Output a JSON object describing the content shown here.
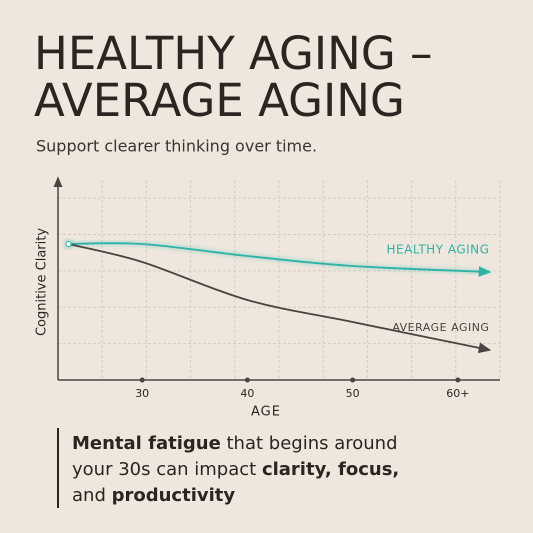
{
  "chart_data": {
    "type": "line",
    "title": [
      "HEALTHY AGING –",
      "AVERAGE AGING"
    ],
    "subtitle": "Support clearer thinking over time.",
    "ylabel": "Cognitive Clarity",
    "xlabel": "AGE",
    "x": [
      23,
      30,
      40,
      50,
      63
    ],
    "xlim": [
      22,
      64
    ],
    "xticks": [
      30,
      40,
      50,
      {
        "value": 60,
        "label": "60+"
      }
    ],
    "ylim": [
      0,
      100
    ],
    "grid": true,
    "series": [
      {
        "name": "HEALTHY AGING",
        "color": "#2bb3a6",
        "values": [
          68,
          68,
          62,
          57,
          54
        ]
      },
      {
        "name": "AVERAGE AGING",
        "color": "#4a4340",
        "values": [
          68,
          59,
          40,
          29,
          15
        ]
      }
    ],
    "note": [
      [
        {
          "text": "Mental fatigue",
          "bold": true
        },
        {
          "text": " that begins around",
          "bold": false
        }
      ],
      [
        {
          "text": "your 30s can impact ",
          "bold": false
        },
        {
          "text": "clarity, focus,",
          "bold": true
        }
      ],
      [
        {
          "text": "and ",
          "bold": false
        },
        {
          "text": "productivity",
          "bold": true
        }
      ]
    ]
  }
}
